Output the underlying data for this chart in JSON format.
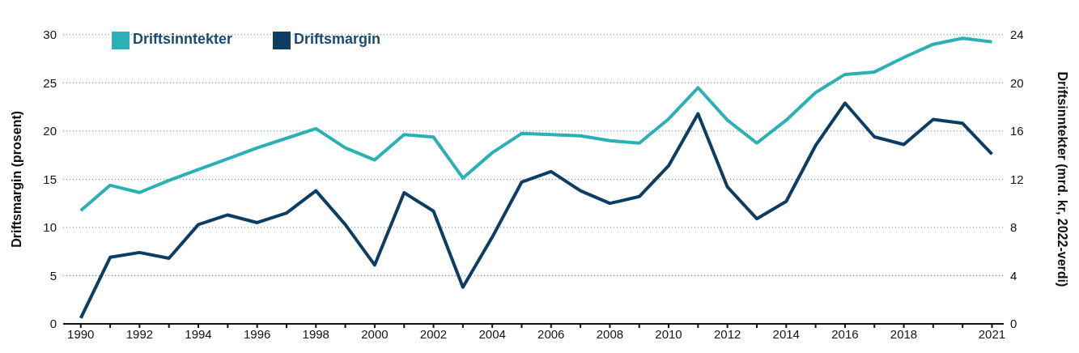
{
  "chart_data": {
    "type": "line",
    "x": [
      1990,
      1991,
      1992,
      1993,
      1994,
      1995,
      1996,
      1997,
      1998,
      1999,
      2000,
      2001,
      2002,
      2003,
      2004,
      2005,
      2006,
      2007,
      2008,
      2009,
      2010,
      2011,
      2012,
      2013,
      2014,
      2015,
      2016,
      2017,
      2018,
      2019,
      2020,
      2021
    ],
    "series": [
      {
        "name": "Driftsmargin",
        "color": "#0d3d63",
        "values": [
          0.6,
          6.9,
          7.4,
          6.8,
          10.3,
          11.3,
          10.5,
          11.5,
          13.8,
          10.3,
          6.1,
          13.6,
          11.7,
          3.8,
          9.0,
          14.7,
          15.8,
          13.8,
          12.5,
          13.2,
          16.4,
          21.8,
          14.2,
          10.9,
          12.7,
          18.5,
          22.9,
          19.4,
          18.6,
          21.2,
          20.8,
          17.6
        ]
      },
      {
        "name": "Driftsinntekter",
        "color": "#2ab0b5",
        "axis": "y2",
        "values": [
          9.4,
          11.5,
          10.9,
          11.9,
          12.8,
          13.7,
          14.6,
          15.4,
          16.2,
          14.6,
          13.6,
          15.7,
          15.5,
          12.1,
          14.2,
          15.8,
          15.7,
          15.6,
          15.2,
          15.0,
          17.0,
          19.6,
          16.9,
          15.0,
          16.9,
          19.2,
          20.7,
          20.9,
          22.1,
          23.2,
          23.7,
          23.4
        ]
      }
    ],
    "ylabel": "Driftsmargin (prosent)",
    "y2label": "Driftsinntekter (mrd. kr, 2022-verdi)",
    "xlim": [
      1989.4,
      2021.4
    ],
    "xticks": [
      1990,
      {
        "value": 1991,
        "label": null
      },
      1992,
      {
        "value": 1993,
        "label": null
      },
      1994,
      {
        "value": 1995,
        "label": null
      },
      1996,
      {
        "value": 1997,
        "label": null
      },
      1998,
      {
        "value": 1999,
        "label": null
      },
      2000,
      {
        "value": 2001,
        "label": null
      },
      2002,
      {
        "value": 2003,
        "label": null
      },
      2004,
      {
        "value": 2005,
        "label": null
      },
      2006,
      {
        "value": 2007,
        "label": null
      },
      2008,
      {
        "value": 2009,
        "label": null
      },
      2010,
      {
        "value": 2011,
        "label": null
      },
      2012,
      {
        "value": 2013,
        "label": null
      },
      2014,
      {
        "value": 2015,
        "label": null
      },
      2016,
      {
        "value": 2017,
        "label": null
      },
      2018,
      {
        "value": 2019,
        "label": null
      },
      {
        "value": 2020,
        "label": null
      },
      2021
    ],
    "ylim": [
      0,
      30
    ],
    "yticks": [
      0,
      5,
      10,
      15,
      20,
      25,
      30
    ],
    "y2lim": [
      0,
      24
    ],
    "y2ticks": [
      0,
      4,
      8,
      12,
      16,
      20,
      24
    ],
    "grid": "y",
    "legend": "top left",
    "marker": "none",
    "line_style": "solid"
  }
}
